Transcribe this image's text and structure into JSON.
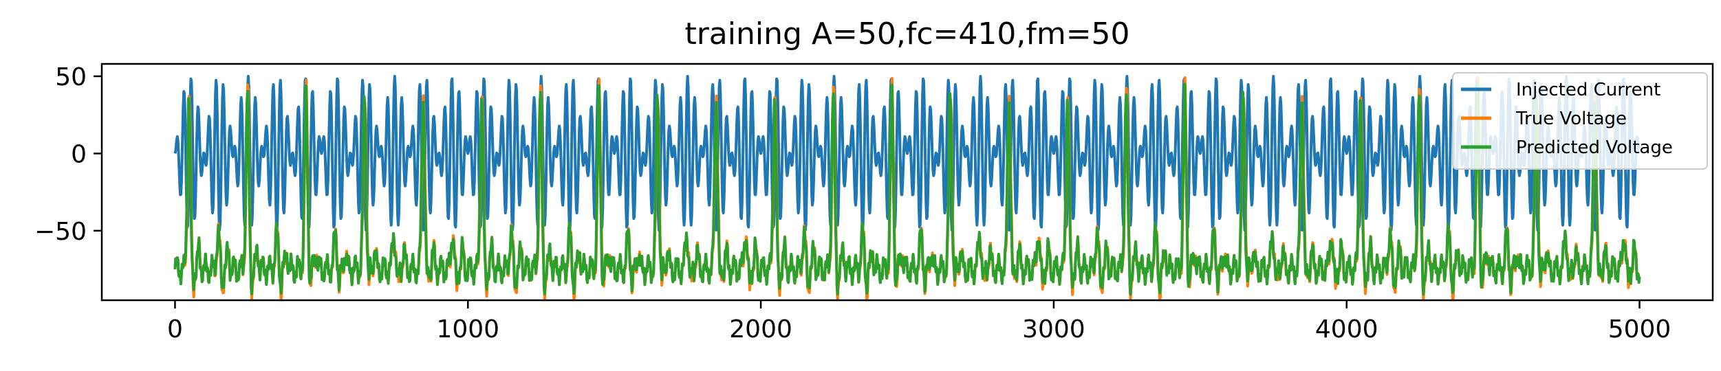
{
  "chart_data": {
    "type": "line",
    "title": "training A=50,fc=410,fm=50",
    "xlabel": "",
    "ylabel": "",
    "xlim": [
      -250,
      5250
    ],
    "ylim": [
      -95,
      58
    ],
    "xticks": [
      0,
      1000,
      2000,
      3000,
      4000,
      5000
    ],
    "xtick_labels": [
      "0",
      "1000",
      "2000",
      "3000",
      "4000",
      "5000"
    ],
    "yticks": [
      50,
      0,
      -50
    ],
    "ytick_labels": [
      "50",
      "0",
      "−50"
    ],
    "grid": false,
    "legend_position": "upper right",
    "x_range": [
      0,
      5000
    ],
    "series": [
      {
        "name": "Injected Current",
        "color": "#1f77b4",
        "signal": "A*sin(2*pi*fm*t)*sin(2*pi*fc*t)",
        "amplitude": 50,
        "fc": 410,
        "fm": 50
      },
      {
        "name": "True Voltage",
        "color": "#ff7f0e",
        "baseline": -75,
        "min": -88,
        "peak_max": 40
      },
      {
        "name": "Predicted Voltage",
        "color": "#2ca02c",
        "baseline": -75,
        "min": -84,
        "peak_max": 38
      }
    ]
  }
}
